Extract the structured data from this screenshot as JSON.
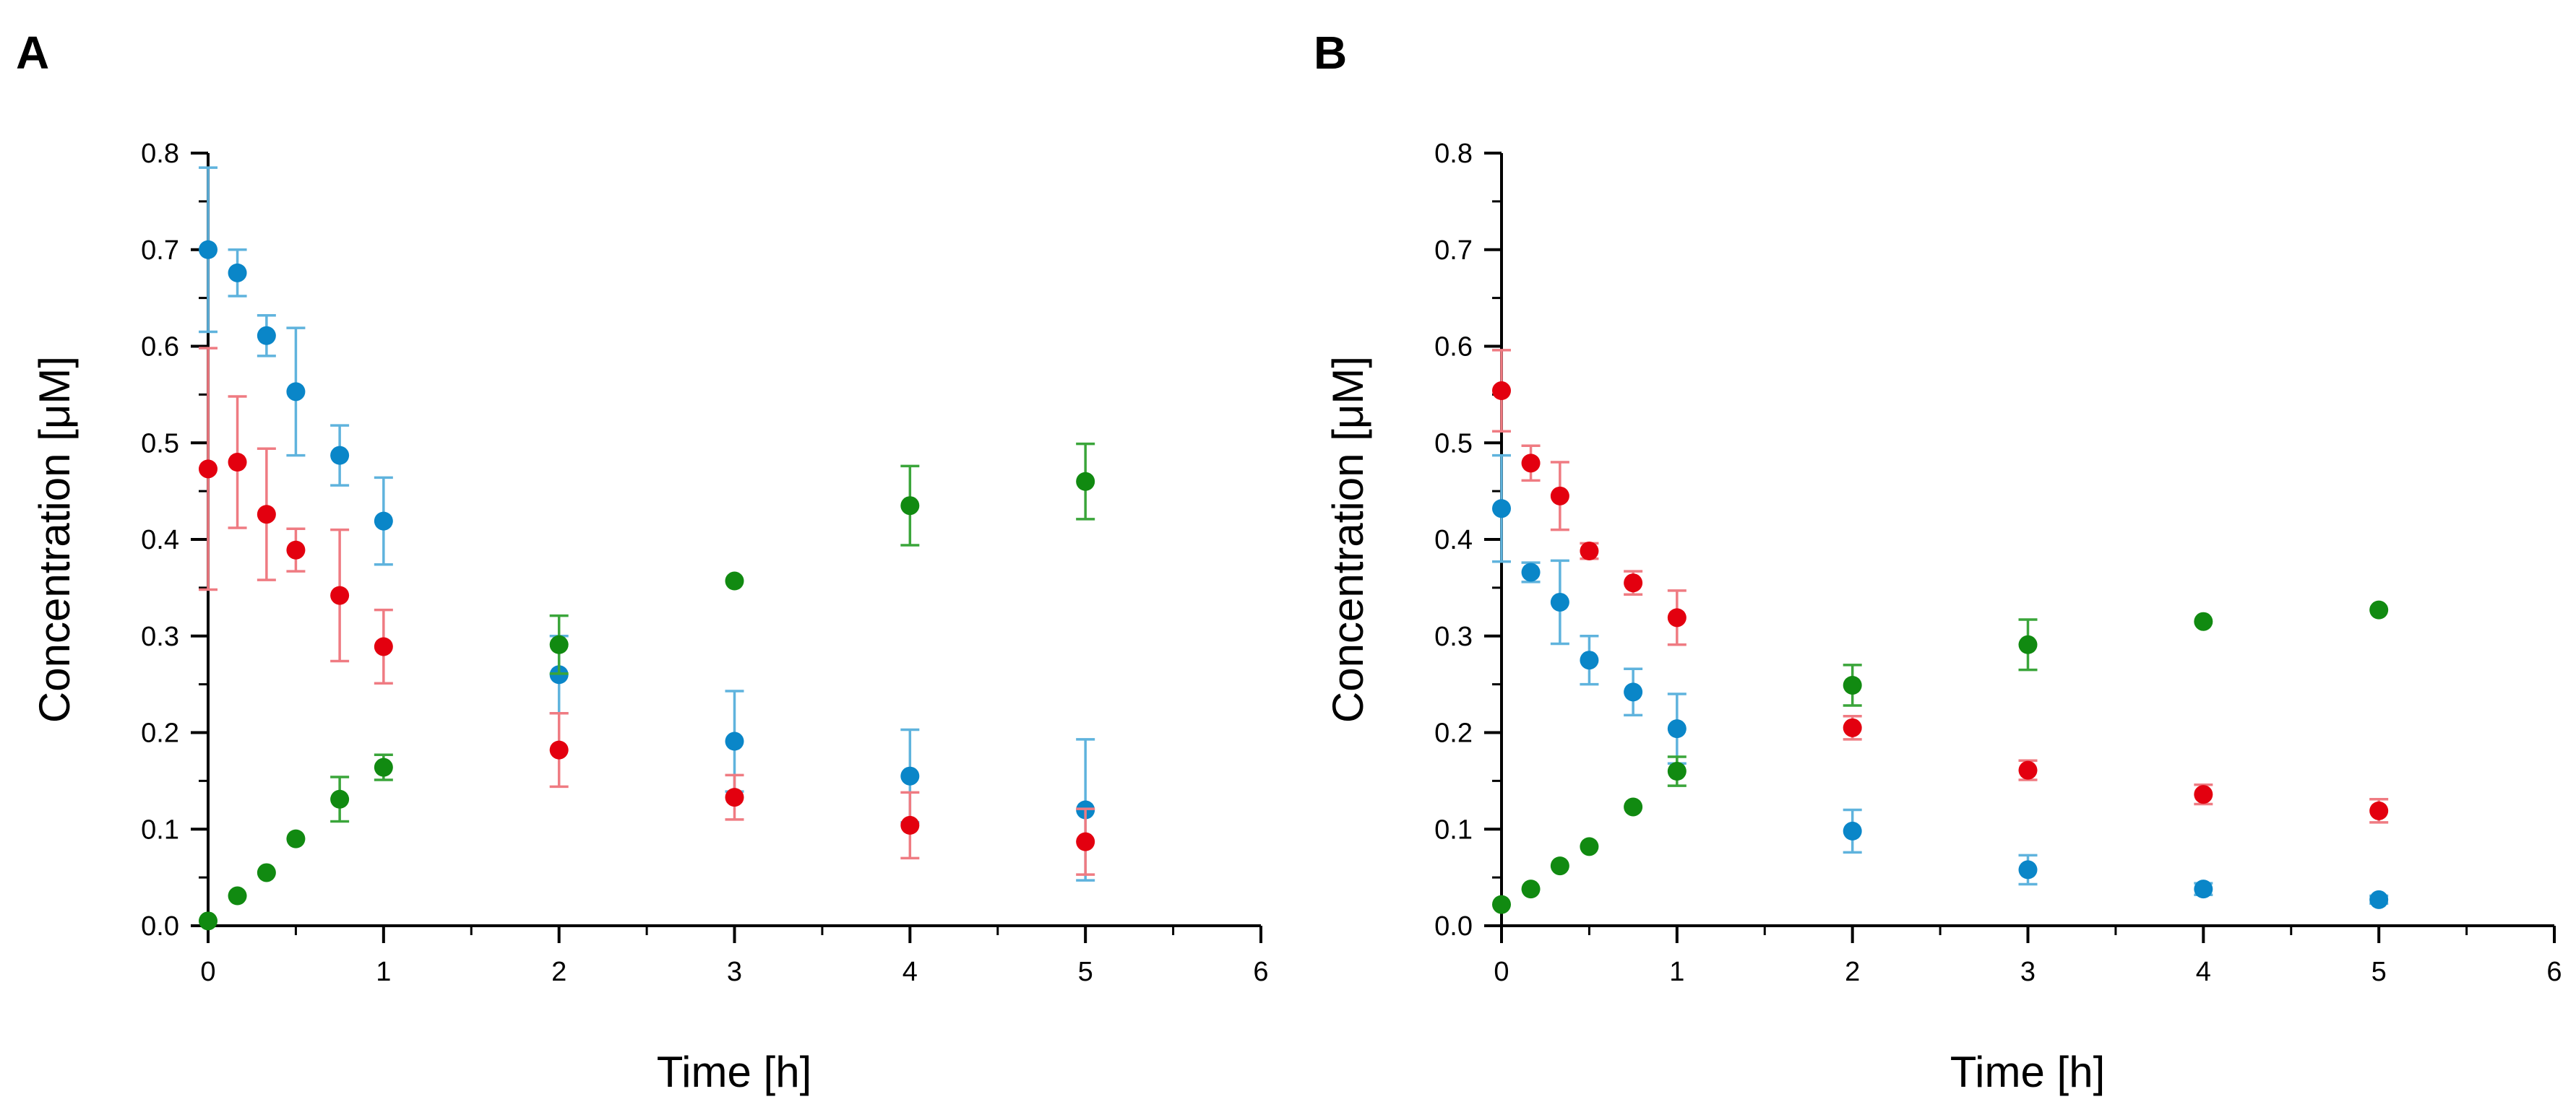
{
  "chart_data": [
    {
      "panel": "A",
      "type": "scatter",
      "xlabel": "Time [h]",
      "ylabel": "Concentration [μM]",
      "xlim": [
        0,
        6
      ],
      "ylim": [
        0,
        0.8
      ],
      "xticks": [
        "0",
        "1",
        "2",
        "3",
        "4",
        "5",
        "6"
      ],
      "yticks": [
        "0.0",
        "0.1",
        "0.2",
        "0.3",
        "0.4",
        "0.5",
        "0.6",
        "0.7",
        "0.8"
      ],
      "grid": false,
      "series": [
        {
          "name": "blue",
          "color": "#0a86c8",
          "error_color": "#5fb3dd",
          "x": [
            0,
            0.167,
            0.333,
            0.5,
            0.75,
            1,
            2,
            3,
            4,
            5
          ],
          "y": [
            0.7,
            0.676,
            0.611,
            0.553,
            0.487,
            0.419,
            0.26,
            0.191,
            0.155,
            0.12
          ],
          "err": [
            0.085,
            0.024,
            0.021,
            0.066,
            0.031,
            0.045,
            0.04,
            0.052,
            0.048,
            0.073
          ]
        },
        {
          "name": "red",
          "color": "#e3000f",
          "error_color": "#ef7b82",
          "x": [
            0,
            0.167,
            0.333,
            0.5,
            0.75,
            1,
            2,
            3,
            4,
            5
          ],
          "y": [
            0.473,
            0.48,
            0.426,
            0.389,
            0.342,
            0.289,
            0.182,
            0.133,
            0.104,
            0.087
          ],
          "err": [
            0.125,
            0.068,
            0.068,
            0.022,
            0.068,
            0.038,
            0.038,
            0.023,
            0.034,
            0.034
          ]
        },
        {
          "name": "green",
          "color": "#118a11",
          "error_color": "#3aa53a",
          "x": [
            0,
            0.167,
            0.333,
            0.5,
            0.75,
            1,
            2,
            3,
            4,
            5
          ],
          "y": [
            0.005,
            0.031,
            0.055,
            0.09,
            0.131,
            0.164,
            0.291,
            0.357,
            0.435,
            0.46
          ],
          "err": [
            0,
            0,
            0,
            0,
            0.023,
            0.013,
            0.03,
            0,
            0.041,
            0.039
          ]
        }
      ]
    },
    {
      "panel": "B",
      "type": "scatter",
      "xlabel": "Time [h]",
      "ylabel": "Concentration [μM]",
      "xlim": [
        0,
        6
      ],
      "ylim": [
        0,
        0.8
      ],
      "xticks": [
        "0",
        "1",
        "2",
        "3",
        "4",
        "5",
        "6"
      ],
      "yticks": [
        "0.0",
        "0.1",
        "0.2",
        "0.3",
        "0.4",
        "0.5",
        "0.6",
        "0.7",
        "0.8"
      ],
      "grid": false,
      "series": [
        {
          "name": "blue",
          "color": "#0a86c8",
          "error_color": "#5fb3dd",
          "x": [
            0,
            0.167,
            0.333,
            0.5,
            0.75,
            1,
            2,
            3,
            4,
            5
          ],
          "y": [
            0.432,
            0.366,
            0.335,
            0.275,
            0.242,
            0.204,
            0.098,
            0.058,
            0.038,
            0.027
          ],
          "err": [
            0.055,
            0.01,
            0.043,
            0.025,
            0.024,
            0.036,
            0.022,
            0.015,
            0.006,
            0.004
          ]
        },
        {
          "name": "red",
          "color": "#e3000f",
          "error_color": "#ef7b82",
          "x": [
            0,
            0.167,
            0.333,
            0.5,
            0.75,
            1,
            2,
            3,
            4,
            5
          ],
          "y": [
            0.554,
            0.479,
            0.445,
            0.388,
            0.355,
            0.319,
            0.205,
            0.161,
            0.136,
            0.119
          ],
          "err": [
            0.042,
            0.018,
            0.035,
            0.008,
            0.012,
            0.028,
            0.012,
            0.01,
            0.01,
            0.012
          ]
        },
        {
          "name": "green",
          "color": "#118a11",
          "error_color": "#3aa53a",
          "x": [
            0,
            0.167,
            0.333,
            0.5,
            0.75,
            1,
            2,
            3,
            4,
            5
          ],
          "y": [
            0.022,
            0.038,
            0.062,
            0.082,
            0.123,
            0.16,
            0.249,
            0.291,
            0.315,
            0.327
          ],
          "err": [
            0,
            0,
            0,
            0,
            0,
            0.015,
            0.021,
            0.026,
            0,
            0
          ]
        }
      ]
    }
  ]
}
